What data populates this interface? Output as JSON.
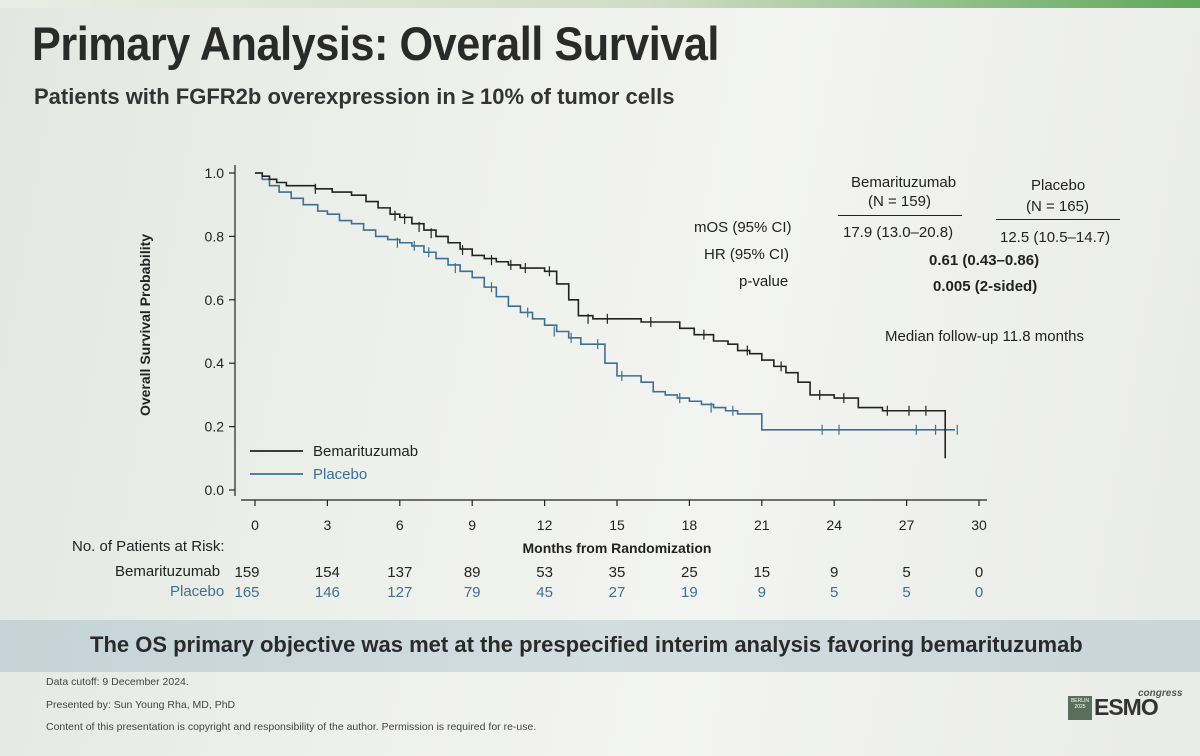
{
  "slide": {
    "title": "Primary Analysis: Overall Survival",
    "subtitle": "Patients with FGFR2b overexpression in ≥ 10% of tumor cells"
  },
  "chart_data": {
    "type": "line",
    "step": true,
    "xlabel": "Months from Randomization",
    "ylabel": "Overall Survival Probability",
    "xlim": [
      0,
      30
    ],
    "ylim": [
      0,
      1
    ],
    "x_ticks": [
      0,
      3,
      6,
      9,
      12,
      15,
      18,
      21,
      24,
      27,
      30
    ],
    "y_ticks": [
      0.0,
      0.2,
      0.4,
      0.6,
      0.8,
      1.0
    ],
    "y_tick_labels": [
      "0.0",
      "0.2",
      "0.4",
      "0.6",
      "0.8",
      "1.0"
    ],
    "legend": {
      "position": "bottom-left"
    },
    "series": [
      {
        "name": "Bemarituzumab",
        "color": "#222222",
        "x": [
          0,
          0.3,
          0.6,
          0.9,
          1.3,
          1.8,
          2.5,
          3.2,
          4.0,
          4.6,
          5.1,
          5.6,
          6.0,
          6.5,
          7.0,
          7.5,
          8.0,
          8.5,
          9.0,
          9.5,
          10.0,
          10.5,
          11.0,
          11.5,
          12.0,
          12.5,
          13.0,
          13.4,
          14.0,
          15.0,
          16.0,
          17.0,
          17.6,
          18.2,
          19.0,
          19.6,
          20.0,
          20.5,
          21.0,
          21.5,
          22.0,
          22.5,
          23.0,
          24.0,
          25.0,
          26.0,
          27.0,
          28.0,
          28.6
        ],
        "y": [
          1.0,
          0.99,
          0.98,
          0.97,
          0.96,
          0.96,
          0.95,
          0.94,
          0.93,
          0.91,
          0.89,
          0.87,
          0.86,
          0.84,
          0.82,
          0.8,
          0.78,
          0.76,
          0.74,
          0.73,
          0.72,
          0.71,
          0.7,
          0.7,
          0.69,
          0.65,
          0.6,
          0.55,
          0.54,
          0.54,
          0.53,
          0.53,
          0.51,
          0.49,
          0.47,
          0.46,
          0.44,
          0.43,
          0.41,
          0.39,
          0.37,
          0.34,
          0.3,
          0.29,
          0.26,
          0.25,
          0.25,
          0.25,
          0.1
        ],
        "censored": [
          [
            2.5,
            0.95
          ],
          [
            5.8,
            0.865
          ],
          [
            6.2,
            0.855
          ],
          [
            6.8,
            0.83
          ],
          [
            7.3,
            0.81
          ],
          [
            8.6,
            0.757
          ],
          [
            9.8,
            0.725
          ],
          [
            10.6,
            0.71
          ],
          [
            11.2,
            0.7
          ],
          [
            12.2,
            0.69
          ],
          [
            13.8,
            0.54
          ],
          [
            14.6,
            0.54
          ],
          [
            16.4,
            0.53
          ],
          [
            18.6,
            0.49
          ],
          [
            20.4,
            0.44
          ],
          [
            21.8,
            0.39
          ],
          [
            23.4,
            0.3
          ],
          [
            24.4,
            0.29
          ],
          [
            26.2,
            0.25
          ],
          [
            27.1,
            0.25
          ],
          [
            27.8,
            0.25
          ]
        ]
      },
      {
        "name": "Placebo",
        "color": "#3d6f94",
        "x": [
          0,
          0.3,
          0.6,
          1.0,
          1.5,
          2.0,
          2.6,
          3.0,
          3.5,
          4.0,
          4.5,
          5.0,
          5.5,
          6.0,
          6.5,
          7.0,
          7.5,
          8.0,
          8.5,
          9.0,
          9.5,
          10.0,
          10.5,
          11.0,
          11.5,
          12.0,
          12.5,
          13.0,
          13.5,
          14.0,
          14.5,
          15.0,
          16.0,
          16.5,
          17.0,
          17.5,
          18.0,
          18.5,
          19.0,
          19.5,
          20.0,
          20.5,
          21.0,
          22.0,
          23.0,
          24.0,
          25.0,
          26.0,
          27.0,
          28.0,
          29.0
        ],
        "y": [
          1.0,
          0.98,
          0.96,
          0.94,
          0.92,
          0.9,
          0.88,
          0.87,
          0.85,
          0.84,
          0.82,
          0.8,
          0.79,
          0.78,
          0.77,
          0.75,
          0.73,
          0.71,
          0.69,
          0.67,
          0.64,
          0.61,
          0.58,
          0.56,
          0.54,
          0.52,
          0.5,
          0.48,
          0.46,
          0.46,
          0.4,
          0.36,
          0.34,
          0.31,
          0.3,
          0.29,
          0.28,
          0.27,
          0.26,
          0.25,
          0.24,
          0.24,
          0.19,
          0.19,
          0.19,
          0.19,
          0.19,
          0.19,
          0.19,
          0.19,
          0.19
        ],
        "censored": [
          [
            5.9,
            0.78
          ],
          [
            6.6,
            0.77
          ],
          [
            7.2,
            0.75
          ],
          [
            8.3,
            0.7
          ],
          [
            9.8,
            0.64
          ],
          [
            11.3,
            0.56
          ],
          [
            12.4,
            0.5
          ],
          [
            13.1,
            0.48
          ],
          [
            14.2,
            0.46
          ],
          [
            15.2,
            0.36
          ],
          [
            17.6,
            0.29
          ],
          [
            18.9,
            0.26
          ],
          [
            19.8,
            0.25
          ],
          [
            23.5,
            0.19
          ],
          [
            24.2,
            0.19
          ],
          [
            27.4,
            0.19
          ],
          [
            28.2,
            0.19
          ],
          [
            28.6,
            0.19
          ],
          [
            29.1,
            0.19
          ]
        ]
      }
    ]
  },
  "stats": {
    "header_bem": "Bemarituzumab",
    "header_bem_n": "(N = 159)",
    "header_pla": "Placebo",
    "header_pla_n": "(N = 165)",
    "row_mos": "mOS (95% CI)",
    "row_hr": "HR (95% CI)",
    "row_p": "p-value",
    "mos_bem": "17.9 (13.0–20.8)",
    "mos_pla": "12.5 (10.5–14.7)",
    "hr": "0.61 (0.43–0.86)",
    "p": "0.005 (2-sided)",
    "followup": "Median follow-up 11.8 months"
  },
  "risk": {
    "label": "No. of Patients at Risk:",
    "bem_label": "Bemarituzumab",
    "pla_label": "Placebo",
    "bem": [
      "159",
      "154",
      "137",
      "89",
      "53",
      "35",
      "25",
      "15",
      "9",
      "5",
      "0"
    ],
    "pla": [
      "165",
      "146",
      "127",
      "79",
      "45",
      "27",
      "19",
      "9",
      "5",
      "5",
      "0"
    ]
  },
  "banner": "The OS primary objective was met at the prespecified interim analysis favoring bemarituzumab",
  "footer": {
    "cutoff": "Data cutoff: 9 December 2024.",
    "presenter": "Presented by: Sun Young Rha, MD, PhD",
    "copyright": "Content of this presentation is copyright and responsibility of the author. Permission is required for re-use."
  },
  "logo": {
    "city": "BERLIN 2025",
    "name": "ESMO",
    "event": "congress"
  },
  "colors": {
    "bem": "#222222",
    "pla": "#3d6f94",
    "banner": "#c9d6da"
  }
}
